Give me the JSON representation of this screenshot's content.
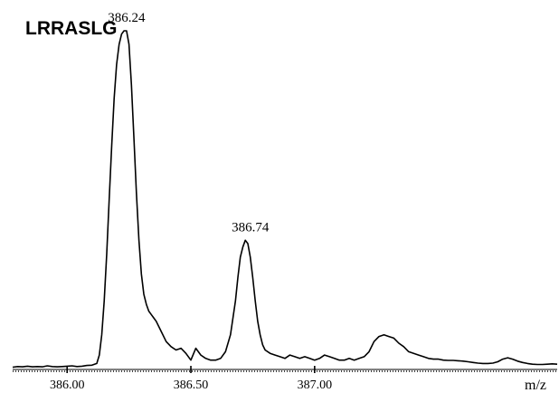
{
  "chart_data": {
    "type": "line",
    "title": "LRRASLG",
    "xlabel": "m/z",
    "ylabel": "",
    "x_ticks": [
      {
        "value": 386.0,
        "label": "386.00"
      },
      {
        "value": 386.5,
        "label": "386.50"
      },
      {
        "value": 387.0,
        "label": "387.00"
      }
    ],
    "peak_labels": [
      {
        "x": 386.24,
        "y": 100,
        "label": "386.24"
      },
      {
        "x": 386.74,
        "y": 38,
        "label": "386.74"
      }
    ],
    "xlim": [
      385.78,
      387.98
    ],
    "ylim": [
      0,
      100
    ],
    "grid": false,
    "legend": "none",
    "color": "#000000",
    "series": [
      {
        "x": [
          385.78,
          385.8,
          385.82,
          385.84,
          385.86,
          385.88,
          385.9,
          385.92,
          385.94,
          385.96,
          385.98,
          386.0,
          386.02,
          386.04,
          386.06,
          386.08,
          386.1,
          386.12,
          386.13,
          386.14,
          386.15,
          386.16,
          386.17,
          386.18,
          386.19,
          386.2,
          386.21,
          386.22,
          386.23,
          386.24,
          386.25,
          386.26,
          386.27,
          386.28,
          386.29,
          386.3,
          386.31,
          386.32,
          386.33,
          386.34,
          386.35,
          386.36,
          386.38,
          386.4,
          386.42,
          386.44,
          386.46,
          386.48,
          386.5,
          386.52,
          386.54,
          386.56,
          386.58,
          386.6,
          386.62,
          386.64,
          386.66,
          386.68,
          386.69,
          386.7,
          386.71,
          386.72,
          386.73,
          386.74,
          386.75,
          386.76,
          386.77,
          386.78,
          386.79,
          386.8,
          386.82,
          386.84,
          386.86,
          386.88,
          386.9,
          386.92,
          386.94,
          386.96,
          386.98,
          387.0,
          387.02,
          387.04,
          387.06,
          387.08,
          387.1,
          387.12,
          387.14,
          387.16,
          387.18,
          387.2,
          387.22,
          387.24,
          387.26,
          387.28,
          387.3,
          387.32,
          387.34,
          387.36,
          387.38,
          387.4,
          387.42,
          387.44,
          387.46,
          387.48,
          387.5,
          387.52,
          387.54,
          387.56,
          387.58,
          387.6,
          387.62,
          387.64,
          387.66,
          387.68,
          387.7,
          387.72,
          387.74,
          387.76,
          387.78,
          387.8,
          387.82,
          387.84,
          387.86,
          387.88,
          387.9,
          387.92,
          387.94,
          387.96,
          387.98
        ],
        "y": [
          0.4,
          0.6,
          0.5,
          0.7,
          0.5,
          0.6,
          0.5,
          0.8,
          0.6,
          0.5,
          0.6,
          0.7,
          0.8,
          0.6,
          0.7,
          0.9,
          1.0,
          1.5,
          4,
          10,
          20,
          34,
          50,
          66,
          80,
          90,
          96,
          99,
          100,
          100,
          96,
          84,
          68,
          52,
          38,
          28,
          22,
          19,
          17,
          16,
          15,
          14,
          11,
          8,
          6.5,
          5.5,
          6,
          4.5,
          2.5,
          6,
          4,
          3,
          2.5,
          2.5,
          3,
          5,
          10,
          20,
          27,
          33,
          36,
          38,
          37,
          33,
          27,
          20,
          14,
          10,
          7,
          5.5,
          4.5,
          4,
          3.5,
          3,
          4,
          3.5,
          3,
          3.5,
          3,
          2.5,
          3,
          4,
          3.5,
          3,
          2.5,
          2.5,
          3,
          2.5,
          3,
          3.5,
          5,
          8,
          9.5,
          10,
          9.5,
          9,
          7.5,
          6.5,
          5,
          4.5,
          4,
          3.5,
          3,
          2.8,
          2.8,
          2.5,
          2.4,
          2.4,
          2.3,
          2.2,
          2.0,
          1.8,
          1.6,
          1.5,
          1.5,
          1.6,
          2.0,
          2.8,
          3.2,
          2.8,
          2.2,
          1.8,
          1.5,
          1.3,
          1.2,
          1.2,
          1.3,
          1.4,
          1.3
        ]
      }
    ]
  }
}
